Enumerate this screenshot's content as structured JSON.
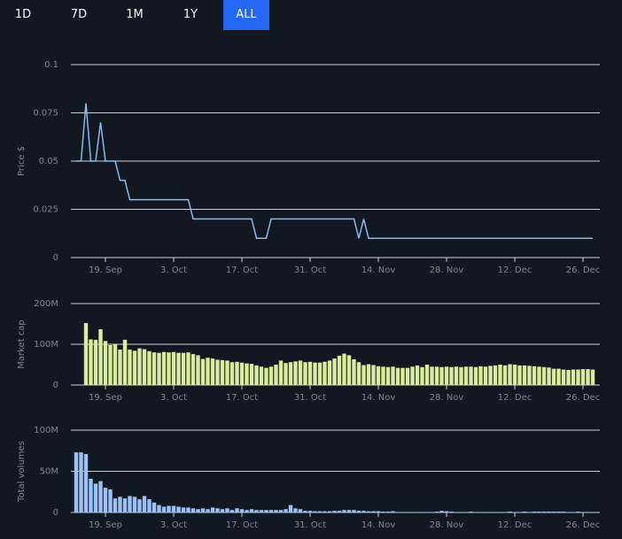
{
  "controls": {
    "ranges": [
      "1D",
      "7D",
      "1M",
      "1Y",
      "ALL"
    ],
    "selected": 4
  },
  "chart_data": [
    {
      "type": "line",
      "ylabel": "Price $",
      "color": "#8fb8ea",
      "grid": true,
      "categories": [
        "13. Sep",
        "14. Sep",
        "15. Sep",
        "16. Sep",
        "17. Sep",
        "18. Sep",
        "19. Sep",
        "20. Sep",
        "21. Sep",
        "22. Sep",
        "23. Sep",
        "24. Sep",
        "25. Sep",
        "26. Sep",
        "27. Sep",
        "28. Sep",
        "29. Sep",
        "30. Sep",
        "1. Oct",
        "2. Oct",
        "3. Oct",
        "4. Oct",
        "5. Oct",
        "6. Oct",
        "7. Oct",
        "8. Oct",
        "9. Oct",
        "10. Oct",
        "11. Oct",
        "12. Oct",
        "13. Oct",
        "14. Oct",
        "15. Oct",
        "16. Oct",
        "17. Oct",
        "18. Oct",
        "19. Oct",
        "20. Oct",
        "21. Oct",
        "22. Oct",
        "23. Oct",
        "24. Oct",
        "25. Oct",
        "26. Oct",
        "27. Oct",
        "28. Oct",
        "29. Oct",
        "30. Oct",
        "31. Oct",
        "1. Nov",
        "2. Nov",
        "3. Nov",
        "4. Nov",
        "5. Nov",
        "6. Nov",
        "7. Nov",
        "8. Nov",
        "9. Nov",
        "10. Nov",
        "11. Nov",
        "12. Nov",
        "13. Nov",
        "14. Nov",
        "15. Nov",
        "16. Nov",
        "17. Nov",
        "18. Nov",
        "19. Nov",
        "20. Nov",
        "21. Nov",
        "22. Nov",
        "23. Nov",
        "24. Nov",
        "25. Nov",
        "26. Nov",
        "27. Nov",
        "28. Nov",
        "29. Nov",
        "30. Nov",
        "1. Dec",
        "2. Dec",
        "3. Dec",
        "4. Dec",
        "5. Dec",
        "6. Dec",
        "7. Dec",
        "8. Dec",
        "9. Dec",
        "10. Dec",
        "11. Dec",
        "12. Dec",
        "13. Dec",
        "14. Dec",
        "15. Dec",
        "16. Dec",
        "17. Dec",
        "18. Dec",
        "19. Dec",
        "20. Dec",
        "21. Dec",
        "22. Dec",
        "23. Dec",
        "24. Dec",
        "25. Dec",
        "26. Dec",
        "27. Dec",
        "28. Dec"
      ],
      "values": [
        0.05,
        0.05,
        0.08,
        0.05,
        0.05,
        0.07,
        0.05,
        0.05,
        0.05,
        0.04,
        0.04,
        0.03,
        0.03,
        0.03,
        0.03,
        0.03,
        0.03,
        0.03,
        0.03,
        0.03,
        0.03,
        0.03,
        0.03,
        0.03,
        0.02,
        0.02,
        0.02,
        0.02,
        0.02,
        0.02,
        0.02,
        0.02,
        0.02,
        0.02,
        0.02,
        0.02,
        0.02,
        0.01,
        0.01,
        0.01,
        0.02,
        0.02,
        0.02,
        0.02,
        0.02,
        0.02,
        0.02,
        0.02,
        0.02,
        0.02,
        0.02,
        0.02,
        0.02,
        0.02,
        0.02,
        0.02,
        0.02,
        0.02,
        0.01,
        0.02,
        0.01,
        0.01,
        0.01,
        0.01,
        0.01,
        0.01,
        0.01,
        0.01,
        0.01,
        0.01,
        0.01,
        0.01,
        0.01,
        0.01,
        0.01,
        0.01,
        0.01,
        0.01,
        0.01,
        0.01,
        0.01,
        0.01,
        0.01,
        0.01,
        0.01,
        0.01,
        0.01,
        0.01,
        0.01,
        0.01,
        0.01,
        0.01,
        0.01,
        0.01,
        0.01,
        0.01,
        0.01,
        0.01,
        0.01,
        0.01,
        0.01,
        0.01,
        0.01,
        0.01,
        0.01,
        0.01,
        0.01
      ],
      "ylim": [
        0,
        0.1
      ],
      "yticks": [
        0,
        0.025,
        0.05,
        0.075,
        0.1
      ],
      "xticks": [
        "19. Sep",
        "3. Oct",
        "17. Oct",
        "31. Oct",
        "14. Nov",
        "28. Nov",
        "12. Dec",
        "26. Dec"
      ]
    },
    {
      "type": "bar",
      "ylabel": "Market cap",
      "color": "#d8ee9c",
      "grid": true,
      "categories": [
        "13. Sep",
        "14. Sep",
        "15. Sep",
        "16. Sep",
        "17. Sep",
        "18. Sep",
        "19. Sep",
        "20. Sep",
        "21. Sep",
        "22. Sep",
        "23. Sep",
        "24. Sep",
        "25. Sep",
        "26. Sep",
        "27. Sep",
        "28. Sep",
        "29. Sep",
        "30. Sep",
        "1. Oct",
        "2. Oct",
        "3. Oct",
        "4. Oct",
        "5. Oct",
        "6. Oct",
        "7. Oct",
        "8. Oct",
        "9. Oct",
        "10. Oct",
        "11. Oct",
        "12. Oct",
        "13. Oct",
        "14. Oct",
        "15. Oct",
        "16. Oct",
        "17. Oct",
        "18. Oct",
        "19. Oct",
        "20. Oct",
        "21. Oct",
        "22. Oct",
        "23. Oct",
        "24. Oct",
        "25. Oct",
        "26. Oct",
        "27. Oct",
        "28. Oct",
        "29. Oct",
        "30. Oct",
        "31. Oct",
        "1. Nov",
        "2. Nov",
        "3. Nov",
        "4. Nov",
        "5. Nov",
        "6. Nov",
        "7. Nov",
        "8. Nov",
        "9. Nov",
        "10. Nov",
        "11. Nov",
        "12. Nov",
        "13. Nov",
        "14. Nov",
        "15. Nov",
        "16. Nov",
        "17. Nov",
        "18. Nov",
        "19. Nov",
        "20. Nov",
        "21. Nov",
        "22. Nov",
        "23. Nov",
        "24. Nov",
        "25. Nov",
        "26. Nov",
        "27. Nov",
        "28. Nov",
        "29. Nov",
        "30. Nov",
        "1. Dec",
        "2. Dec",
        "3. Dec",
        "4. Dec",
        "5. Dec",
        "6. Dec",
        "7. Dec",
        "8. Dec",
        "9. Dec",
        "10. Dec",
        "11. Dec",
        "12. Dec",
        "13. Dec",
        "14. Dec",
        "15. Dec",
        "16. Dec",
        "17. Dec",
        "18. Dec",
        "19. Dec",
        "20. Dec",
        "21. Dec",
        "22. Dec",
        "23. Dec",
        "24. Dec",
        "25. Dec",
        "26. Dec",
        "27. Dec",
        "28. Dec"
      ],
      "values": [
        null,
        null,
        152000000,
        112000000,
        111000000,
        137000000,
        108000000,
        98000000,
        101000000,
        87000000,
        111000000,
        87000000,
        84000000,
        90000000,
        88000000,
        83000000,
        80000000,
        79000000,
        81000000,
        80000000,
        81000000,
        79000000,
        79000000,
        80000000,
        76000000,
        73000000,
        64000000,
        67000000,
        65000000,
        62000000,
        61000000,
        60000000,
        56000000,
        57000000,
        55000000,
        53000000,
        52000000,
        48000000,
        45000000,
        42000000,
        45000000,
        50000000,
        60000000,
        54000000,
        56000000,
        58000000,
        60000000,
        56000000,
        57000000,
        55000000,
        55000000,
        57000000,
        60000000,
        65000000,
        72000000,
        77000000,
        73000000,
        63000000,
        56000000,
        49000000,
        51000000,
        49000000,
        46000000,
        45000000,
        44000000,
        45000000,
        42000000,
        42000000,
        42000000,
        45000000,
        48000000,
        44000000,
        50000000,
        45000000,
        45000000,
        44000000,
        45000000,
        44000000,
        45000000,
        44000000,
        45000000,
        45000000,
        44000000,
        46000000,
        45000000,
        47000000,
        48000000,
        50000000,
        48000000,
        51000000,
        50000000,
        48000000,
        48000000,
        47000000,
        46000000,
        45000000,
        44000000,
        43000000,
        40000000,
        40000000,
        38000000,
        37000000,
        38000000,
        38000000,
        39000000,
        39000000,
        38000000
      ],
      "ylim": [
        0,
        200000000
      ],
      "yticks": [
        0,
        {
          "value": 100000000,
          "label": "100M"
        },
        {
          "value": 200000000,
          "label": "200M"
        }
      ],
      "xticks": [
        "19. Sep",
        "3. Oct",
        "17. Oct",
        "31. Oct",
        "14. Nov",
        "28. Nov",
        "12. Dec",
        "26. Dec"
      ]
    },
    {
      "type": "bar",
      "ylabel": "Total volumes",
      "color": "#9cc2f5",
      "grid": true,
      "categories": [
        "13. Sep",
        "14. Sep",
        "15. Sep",
        "16. Sep",
        "17. Sep",
        "18. Sep",
        "19. Sep",
        "20. Sep",
        "21. Sep",
        "22. Sep",
        "23. Sep",
        "24. Sep",
        "25. Sep",
        "26. Sep",
        "27. Sep",
        "28. Sep",
        "29. Sep",
        "30. Sep",
        "1. Oct",
        "2. Oct",
        "3. Oct",
        "4. Oct",
        "5. Oct",
        "6. Oct",
        "7. Oct",
        "8. Oct",
        "9. Oct",
        "10. Oct",
        "11. Oct",
        "12. Oct",
        "13. Oct",
        "14. Oct",
        "15. Oct",
        "16. Oct",
        "17. Oct",
        "18. Oct",
        "19. Oct",
        "20. Oct",
        "21. Oct",
        "22. Oct",
        "23. Oct",
        "24. Oct",
        "25. Oct",
        "26. Oct",
        "27. Oct",
        "28. Oct",
        "29. Oct",
        "30. Oct",
        "31. Oct",
        "1. Nov",
        "2. Nov",
        "3. Nov",
        "4. Nov",
        "5. Nov",
        "6. Nov",
        "7. Nov",
        "8. Nov",
        "9. Nov",
        "10. Nov",
        "11. Nov",
        "12. Nov",
        "13. Nov",
        "14. Nov",
        "15. Nov",
        "16. Nov",
        "17. Nov",
        "18. Nov",
        "19. Nov",
        "20. Nov",
        "21. Nov",
        "22. Nov",
        "23. Nov",
        "24. Nov",
        "25. Nov",
        "26. Nov",
        "27. Nov",
        "28. Nov",
        "29. Nov",
        "30. Nov",
        "1. Dec",
        "2. Dec",
        "3. Dec",
        "4. Dec",
        "5. Dec",
        "6. Dec",
        "7. Dec",
        "8. Dec",
        "9. Dec",
        "10. Dec",
        "11. Dec",
        "12. Dec",
        "13. Dec",
        "14. Dec",
        "15. Dec",
        "16. Dec",
        "17. Dec",
        "18. Dec",
        "19. Dec",
        "20. Dec",
        "21. Dec",
        "22. Dec",
        "23. Dec",
        "24. Dec",
        "25. Dec",
        "26. Dec",
        "27. Dec",
        "28. Dec"
      ],
      "values": [
        73000000,
        73000000,
        71000000,
        41000000,
        35000000,
        38000000,
        30000000,
        28000000,
        17000000,
        19000000,
        17000000,
        20000000,
        19000000,
        16000000,
        20000000,
        16000000,
        12000000,
        9000000,
        7000000,
        8000000,
        8000000,
        7000000,
        6000000,
        6000000,
        5000000,
        4000000,
        5000000,
        4000000,
        6000000,
        5000000,
        4000000,
        5000000,
        3000000,
        5000000,
        4000000,
        3000000,
        4000000,
        3000000,
        3000000,
        3000000,
        3000000,
        3000000,
        3000000,
        4000000,
        9000000,
        5000000,
        4000000,
        2000000,
        2000000,
        1500000,
        1500000,
        1500000,
        1500000,
        2000000,
        2000000,
        3000000,
        3000000,
        3000000,
        2000000,
        2000000,
        1500000,
        1500000,
        1500000,
        1000000,
        1000000,
        1500000,
        500000,
        500000,
        500000,
        500000,
        500000,
        500000,
        500000,
        500000,
        1000000,
        2000000,
        1500000,
        1000000,
        500000,
        500000,
        500000,
        1000000,
        500000,
        500000,
        500000,
        500000,
        500000,
        500000,
        500000,
        1000000,
        500000,
        500000,
        1000000,
        500000,
        1000000,
        1000000,
        1000000,
        1000000,
        1000000,
        1000000,
        1000000,
        500000,
        500000,
        1000000,
        500000,
        500000,
        500000
      ],
      "ylim": [
        0,
        100000000
      ],
      "yticks": [
        0,
        {
          "value": 50000000,
          "label": "50M"
        },
        {
          "value": 100000000,
          "label": "100M"
        }
      ],
      "xticks": [
        "19. Sep",
        "3. Oct",
        "17. Oct",
        "31. Oct",
        "14. Nov",
        "28. Nov",
        "12. Dec",
        "26. Dec"
      ]
    }
  ]
}
